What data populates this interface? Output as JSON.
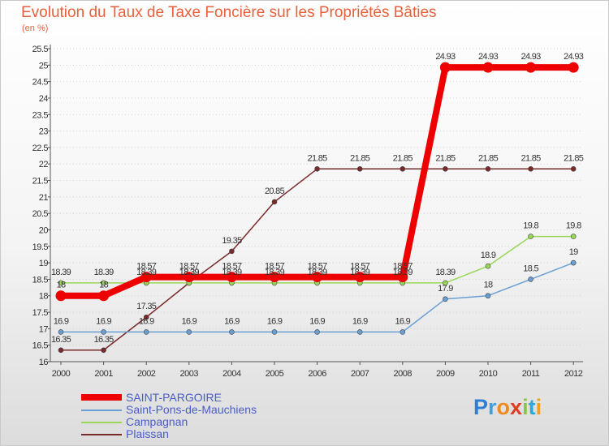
{
  "colors": {
    "title": "#e8603c",
    "legend_text": "#4a5cc8",
    "axis": "#555555",
    "tick_text": "#333333",
    "grid": "#d0d0d0"
  },
  "logo": {
    "letters": [
      "P",
      "r",
      "o",
      "x",
      "i",
      "t",
      "i"
    ],
    "colors": [
      "#2e7fd4",
      "#3aa0e8",
      "#f08a1c",
      "#e03c1e",
      "#8cc63f",
      "#2ba8e0",
      "#f0a020"
    ]
  },
  "chart_data": {
    "type": "line",
    "title": "Evolution du Taux de Taxe Foncière sur les Propriétés Bâties",
    "ylabel": "(en %)",
    "xlabel": "",
    "x": [
      "2000",
      "2001",
      "2002",
      "2003",
      "2004",
      "2005",
      "2006",
      "2007",
      "2008",
      "2009",
      "2010",
      "2011",
      "2012"
    ],
    "ylim": [
      16,
      25.5
    ],
    "yticks": [
      "16",
      "16.5",
      "17",
      "17.5",
      "18",
      "18.5",
      "19",
      "19.5",
      "20",
      "20.5",
      "21",
      "21.5",
      "22",
      "22.5",
      "23",
      "23.5",
      "24",
      "24.5",
      "25",
      "25.5"
    ],
    "series": [
      {
        "name": "Plaissan",
        "color": "#7a2a2a",
        "values": [
          16.35,
          16.35,
          17.35,
          18.39,
          19.35,
          20.85,
          21.85,
          21.85,
          21.85,
          21.85,
          21.85,
          21.85,
          21.85
        ],
        "labels": [
          "16.35",
          "16.35",
          "17.35",
          "18.39",
          "19.35",
          "20.85",
          "21.85",
          "21.85",
          "21.85",
          "21.85",
          "21.85",
          "21.85",
          "21.85"
        ]
      },
      {
        "name": "Saint-Pons-de-Mauchiens",
        "color": "#6a9fd4",
        "values": [
          16.9,
          16.9,
          16.9,
          16.9,
          16.9,
          16.9,
          16.9,
          16.9,
          16.9,
          17.9,
          18,
          18.5,
          19
        ],
        "labels": [
          "16.9",
          "16.9",
          "16.9",
          "16.9",
          "16.9",
          "16.9",
          "16.9",
          "16.9",
          "16.9",
          "17.9",
          "18",
          "18.5",
          "19"
        ]
      },
      {
        "name": "Campagnan",
        "color": "#9ad65a",
        "values": [
          18.39,
          18.39,
          18.39,
          18.39,
          18.39,
          18.39,
          18.39,
          18.39,
          18.39,
          18.39,
          18.9,
          19.8,
          19.8
        ],
        "labels": [
          "18.39",
          "18.39",
          "18.39",
          "18.39",
          "18.39",
          "18.39",
          "18.39",
          "18.39",
          "18.39",
          "18.39",
          "18.9",
          "19.8",
          "19.8"
        ]
      },
      {
        "name": "SAINT-PARGOIRE",
        "color": "#ee0000",
        "values": [
          18,
          18,
          18.57,
          18.57,
          18.57,
          18.57,
          18.57,
          18.57,
          18.57,
          24.93,
          24.93,
          24.93,
          24.93
        ],
        "labels": [
          "18",
          "18",
          "18.57",
          "18.57",
          "18.57",
          "18.57",
          "18.57",
          "18.57",
          "18.57",
          "24.93",
          "24.93",
          "24.93",
          "24.93"
        ]
      }
    ],
    "legend": [
      "SAINT-PARGOIRE",
      "Saint-Pons-de-Mauchiens",
      "Campagnan",
      "Plaissan"
    ]
  }
}
